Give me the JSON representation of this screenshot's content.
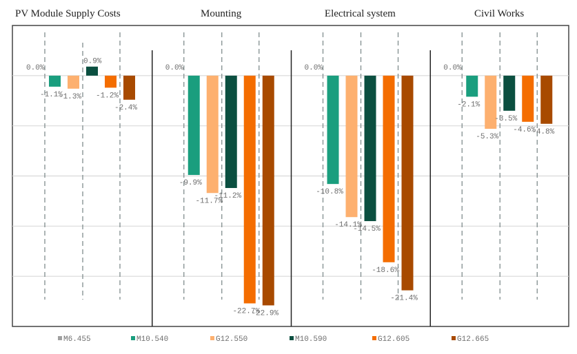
{
  "chart_data": {
    "type": "bar",
    "panels": [
      "PV Module Supply Costs",
      "Mounting",
      "Electrical system",
      "Civil Works"
    ],
    "series": [
      {
        "name": "M6.455",
        "color": "#a0a0a0",
        "values": [
          0.0,
          0.0,
          0.0,
          0.0
        ]
      },
      {
        "name": "M10.540",
        "color": "#1a9e7e",
        "values": [
          -1.1,
          -9.9,
          -10.8,
          -2.1
        ]
      },
      {
        "name": "G12.550",
        "color": "#fdb06f",
        "values": [
          -1.3,
          -11.7,
          -14.1,
          -5.3
        ]
      },
      {
        "name": "M10.590",
        "color": "#0b4f40",
        "values": [
          0.9,
          -11.2,
          -14.5,
          -3.5
        ]
      },
      {
        "name": "G12.605",
        "color": "#f46d00",
        "values": [
          -1.2,
          -22.7,
          -18.6,
          -4.6
        ]
      },
      {
        "name": "G12.665",
        "color": "#a84a00",
        "values": [
          -2.4,
          -22.9,
          -21.4,
          -4.8
        ]
      }
    ],
    "labels": [
      [
        "0.0%",
        "-1.1%",
        "-1.3%",
        "0.9%",
        "-1.2%",
        "-2.4%"
      ],
      [
        "0.0%",
        "-9.9%",
        "-11.7%",
        "-11.2%",
        "-22.7%",
        "-22.9%"
      ],
      [
        "0.0%",
        "-10.8%",
        "-14.1%",
        "-14.5%",
        "-18.6%",
        "-21.4%"
      ],
      [
        "0.0%",
        "-2.1%",
        "-5.3%",
        "-3.5%",
        "-4.6%",
        "-4.8%"
      ]
    ],
    "unit": "%",
    "ylim": [
      -25,
      5
    ],
    "grid": true,
    "gridStep": 5,
    "legend": "bottom"
  }
}
